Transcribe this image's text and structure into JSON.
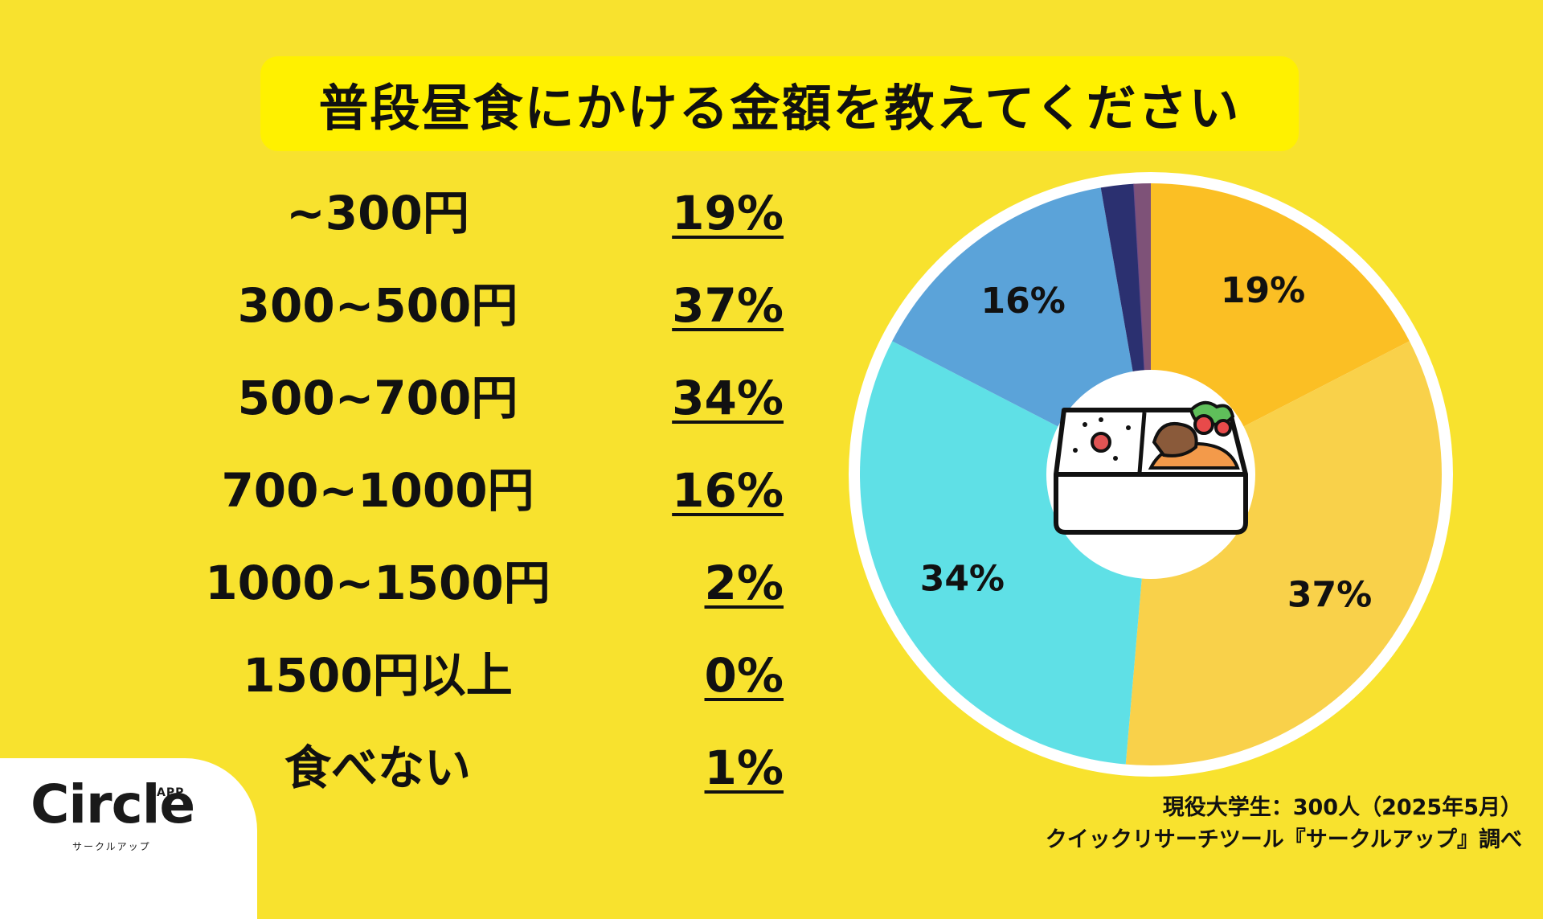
{
  "title": "普段昼食にかける金額を教えてください",
  "chart_data": {
    "type": "pie",
    "style": "donut",
    "categories": [
      "~300円",
      "300~500円",
      "500~700円",
      "700~1000円",
      "1000~1500円",
      "1500円以上",
      "食べない"
    ],
    "values": [
      19,
      37,
      34,
      16,
      2,
      0,
      1
    ],
    "value_labels": [
      "19%",
      "37%",
      "34%",
      "16%",
      "2%",
      "0%",
      "1%"
    ],
    "slice_labels_shown": [
      "19%",
      "37%",
      "34%",
      "16%"
    ],
    "colors": [
      "#fbbf24",
      "#f9d14a",
      "#5fe0e6",
      "#5ba3d9",
      "#2b3070",
      "#6b4a8a",
      "#7e5278"
    ],
    "center_icon": "bento-box-icon"
  },
  "logo": {
    "main": "Circle",
    "app": "APP",
    "sub": "サークルアップ"
  },
  "source": {
    "line1": "現役大学生：300人（2025年5月）",
    "line2": "クイックリサーチツール『サークルアップ』調べ"
  }
}
